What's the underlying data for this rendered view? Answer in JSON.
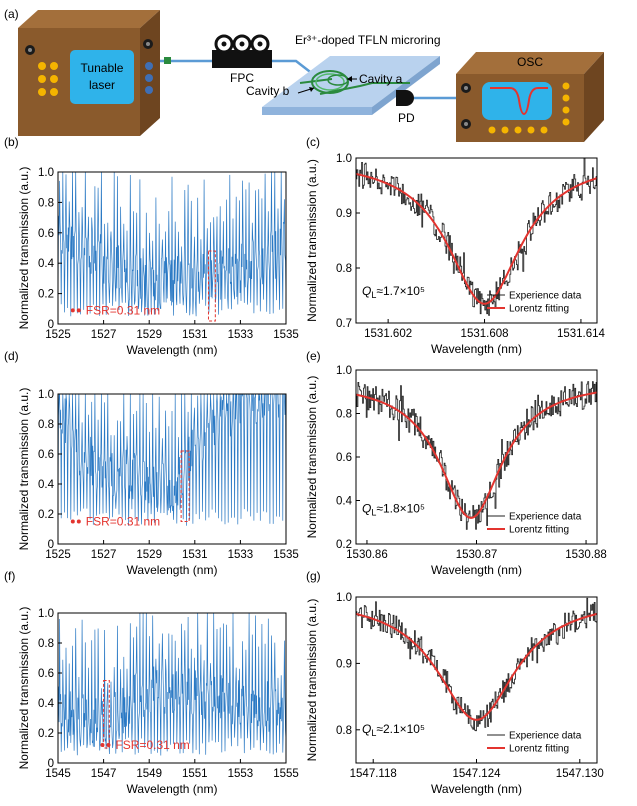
{
  "panel_letters": {
    "a": "(a)",
    "b": "(b)",
    "c": "(c)",
    "d": "(d)",
    "e": "(e)",
    "f": "(f)",
    "g": "(g)"
  },
  "setup": {
    "laser_label_1": "Tunable",
    "laser_label_2": "laser",
    "fpc_label": "FPC",
    "chip_title": "Er³⁺-doped TFLN microring",
    "cavity_a": "Cavity a",
    "cavity_b": "Cavity b",
    "pd_label": "PD",
    "osc_label": "OSC"
  },
  "colors": {
    "trace_blue": "#2a79c4",
    "fit_red": "#e3342f",
    "box_brown": "#8a5a2c",
    "screen_blue": "#2fb3ea",
    "dot_yellow": "#f5b400"
  },
  "chart_data": [
    {
      "id": "b",
      "type": "line",
      "xlabel": "Wavelength (nm)",
      "ylabel": "Normalized transmission (a.u.)",
      "xlim": [
        1525,
        1535
      ],
      "ylim": [
        0,
        1.0
      ],
      "xticks": [
        1525,
        1527,
        1529,
        1531,
        1533,
        1535
      ],
      "yticks": [
        0,
        0.2,
        0.4,
        0.6,
        0.8,
        1.0
      ],
      "series": [
        {
          "name": "transmission",
          "shape": "comb",
          "fsr_nm": 0.31,
          "baseline": [
            [
              1525,
              0.55
            ],
            [
              1527,
              0.35
            ],
            [
              1529,
              0.2
            ],
            [
              1531,
              0.25
            ],
            [
              1533,
              0.3
            ],
            [
              1535,
              0.45
            ]
          ],
          "dip_min": 0.05
        }
      ],
      "annotation": "FSR=0.31 nm",
      "highlight_box_x": [
        1531.6,
        1531.9
      ],
      "highlight_box_y": [
        0.02,
        0.48
      ]
    },
    {
      "id": "c",
      "type": "line",
      "xlabel": "Wavelength (nm)",
      "ylabel": "Normalized transmission (a.u.)",
      "xlim": [
        1531.6,
        1531.615
      ],
      "ylim": [
        0.7,
        1.0
      ],
      "xticks": [
        1531.602,
        1531.608,
        1531.614
      ],
      "yticks": [
        0.7,
        0.8,
        0.9,
        1.0
      ],
      "lorentz": {
        "center": 1531.608,
        "min": 0.735,
        "base": 1.0,
        "hwhm": 0.0028
      },
      "series": [
        {
          "name": "Experience data"
        },
        {
          "name": "Lorentz fitting"
        }
      ],
      "q_label": "Q",
      "q_sub": "L",
      "q_value": "≈1.7×10⁵"
    },
    {
      "id": "d",
      "type": "line",
      "xlabel": "Wavelength (nm)",
      "ylabel": "Normalized transmission (a.u.)",
      "xlim": [
        1525,
        1535
      ],
      "ylim": [
        0,
        1.0
      ],
      "xticks": [
        1525,
        1527,
        1529,
        1531,
        1533,
        1535
      ],
      "yticks": [
        0,
        0.2,
        0.4,
        0.6,
        0.8,
        1.0
      ],
      "series": [
        {
          "name": "transmission",
          "shape": "comb",
          "fsr_nm": 0.31,
          "baseline": [
            [
              1525,
              0.85
            ],
            [
              1526,
              0.55
            ],
            [
              1527,
              0.45
            ],
            [
              1529,
              0.35
            ],
            [
              1530,
              0.3
            ],
            [
              1531,
              0.6
            ],
            [
              1533,
              0.9
            ],
            [
              1535,
              0.95
            ]
          ],
          "dip_min": 0.12
        }
      ],
      "annotation": "FSR=0.31 nm",
      "highlight_box_x": [
        1530.4,
        1530.75
      ],
      "highlight_box_y": [
        0.15,
        0.62
      ]
    },
    {
      "id": "e",
      "type": "line",
      "xlabel": "Wavelength (nm)",
      "ylabel": "Normalized transmission (a.u.)",
      "xlim": [
        1530.859,
        1530.881
      ],
      "ylim": [
        0.2,
        1.0
      ],
      "xticks": [
        1530.86,
        1530.87,
        1530.88
      ],
      "yticks": [
        0.2,
        0.4,
        0.6,
        0.8,
        1.0
      ],
      "lorentz": {
        "center": 1530.8695,
        "min": 0.32,
        "base": 0.95,
        "hwhm": 0.0035
      },
      "series": [
        {
          "name": "Experience data"
        },
        {
          "name": "Lorentz fitting"
        }
      ],
      "q_label": "Q",
      "q_sub": "L",
      "q_value": "≈1.8×10⁵"
    },
    {
      "id": "f",
      "type": "line",
      "xlabel": "Wavelength (nm)",
      "ylabel": "Normalized transmission (a.u.)",
      "xlim": [
        1545,
        1555
      ],
      "ylim": [
        0,
        1.0
      ],
      "xticks": [
        1545,
        1547,
        1549,
        1551,
        1553,
        1555
      ],
      "yticks": [
        0,
        0.2,
        0.4,
        0.6,
        0.8,
        1.0
      ],
      "series": [
        {
          "name": "transmission",
          "shape": "comb",
          "fsr_nm": 0.31,
          "baseline": [
            [
              1545,
              0.3
            ],
            [
              1547,
              0.2
            ],
            [
              1549,
              0.45
            ],
            [
              1551,
              0.4
            ],
            [
              1553,
              0.35
            ],
            [
              1555,
              0.3
            ]
          ],
          "dip_min": 0.05
        }
      ],
      "annotation": "FSR=0.31 nm",
      "highlight_box_x": [
        1547.0,
        1547.25
      ],
      "highlight_box_y": [
        0.1,
        0.55
      ]
    },
    {
      "id": "g",
      "type": "line",
      "xlabel": "Wavelength (nm)",
      "ylabel": "Normalized transmission (a.u.)",
      "xlim": [
        1547.117,
        1547.131
      ],
      "ylim": [
        0.75,
        1.0
      ],
      "xticks": [
        1547.118,
        1547.124,
        1547.13
      ],
      "yticks": [
        0.8,
        0.9,
        1.0
      ],
      "lorentz": {
        "center": 1547.124,
        "min": 0.815,
        "base": 1.0,
        "hwhm": 0.0028
      },
      "series": [
        {
          "name": "Experience data"
        },
        {
          "name": "Lorentz fitting"
        }
      ],
      "q_label": "Q",
      "q_sub": "L",
      "q_value": "≈2.1×10⁵"
    }
  ]
}
